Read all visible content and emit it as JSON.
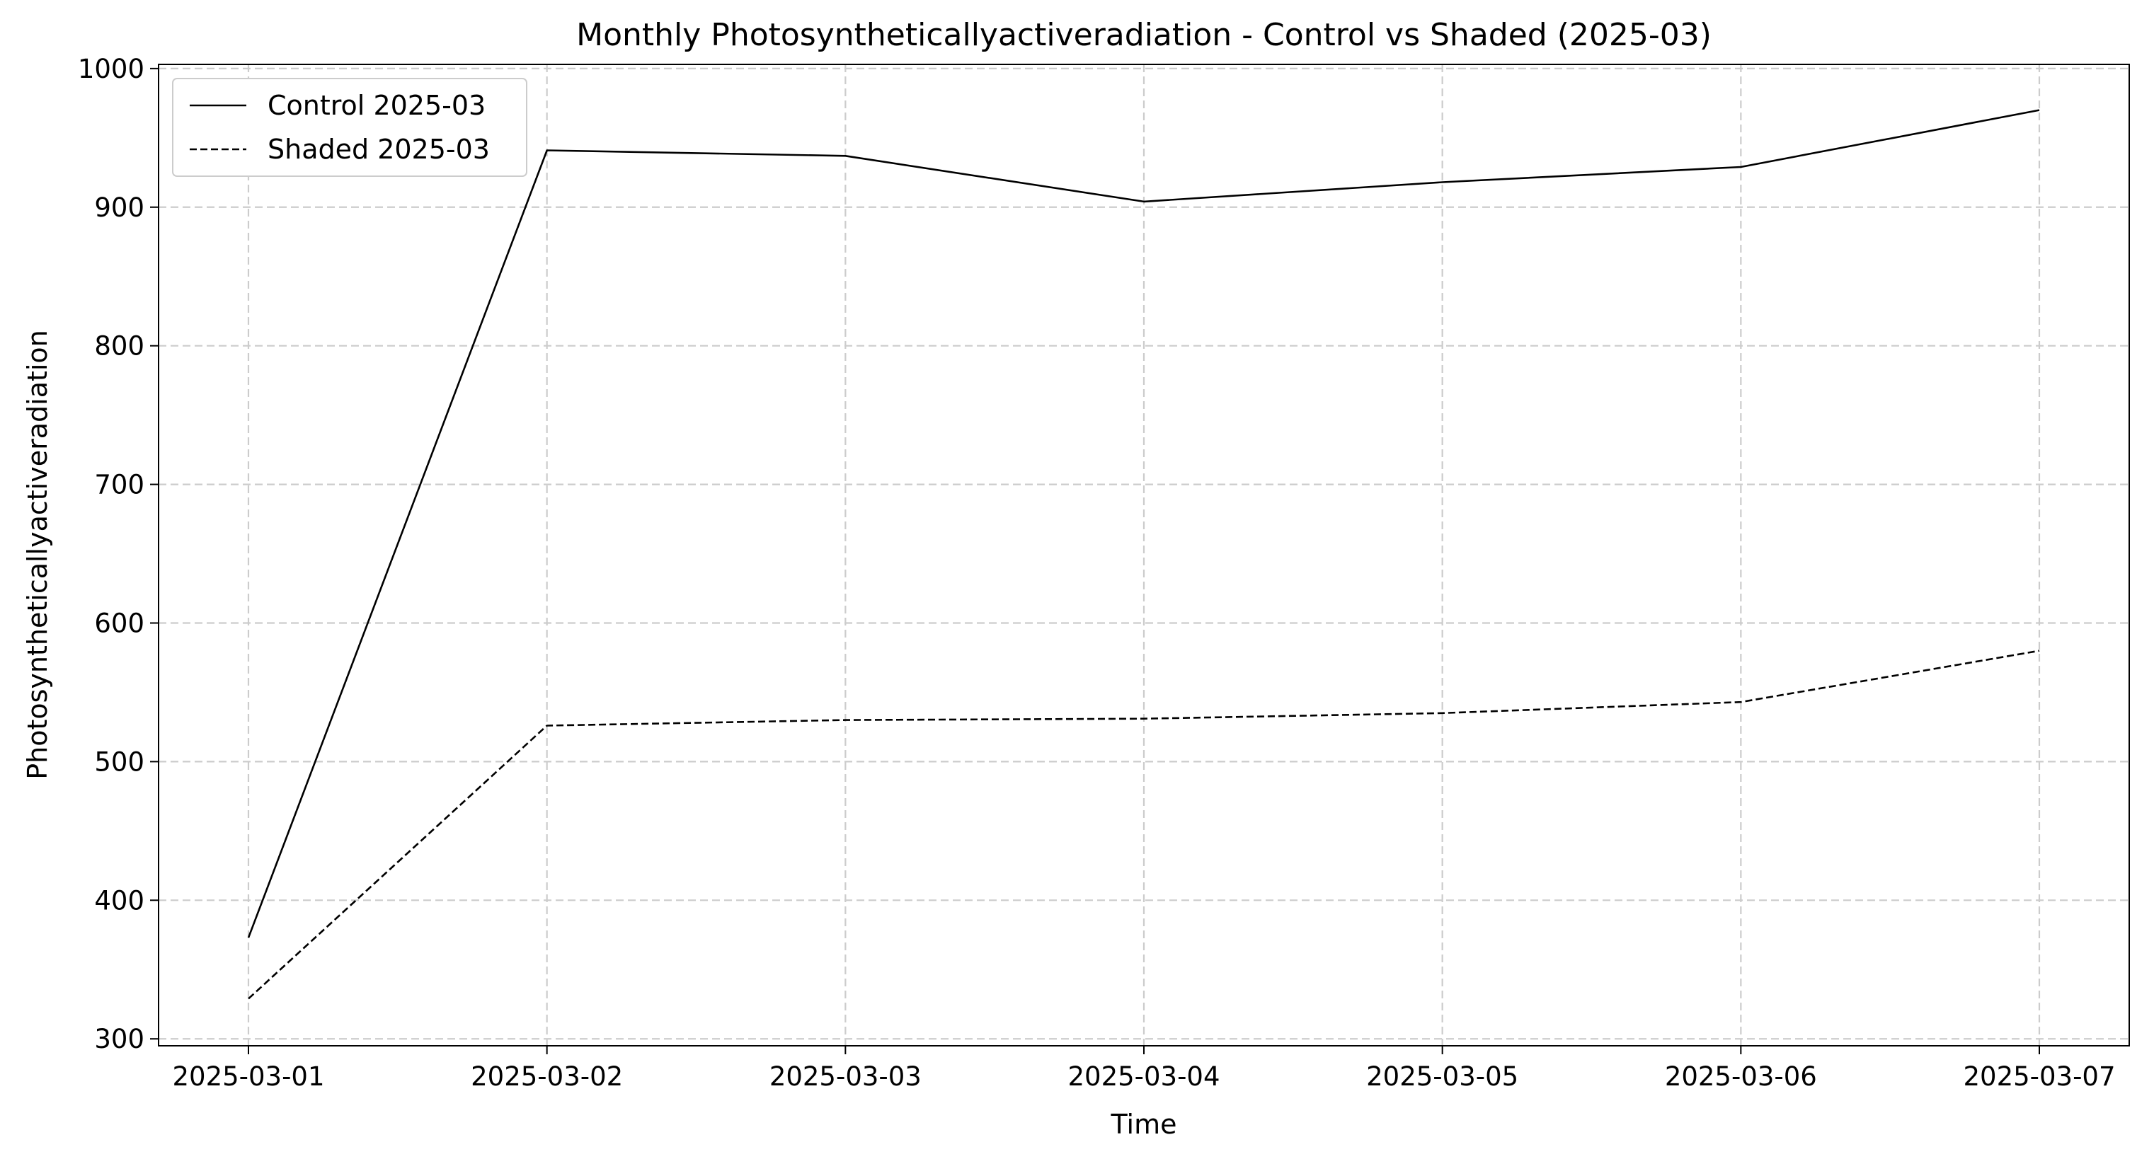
{
  "chart_data": {
    "type": "line",
    "title": "Monthly Photosyntheticallyactiveradiation - Control vs Shaded (2025-03)",
    "xlabel": "Time",
    "ylabel": "Photosyntheticallyactiveradiation",
    "x": [
      "2025-03-01",
      "2025-03-02",
      "2025-03-03",
      "2025-03-04",
      "2025-03-05",
      "2025-03-06",
      "2025-03-07"
    ],
    "ylim": [
      295,
      1003
    ],
    "yticks": [
      300,
      400,
      500,
      600,
      700,
      800,
      900,
      1000
    ],
    "grid": true,
    "legend_position": "top-left",
    "series": [
      {
        "name": "Control 2025-03",
        "style": "solid",
        "color": "#000000",
        "values": [
          373,
          941,
          937,
          904,
          918,
          929,
          970
        ]
      },
      {
        "name": "Shaded 2025-03",
        "style": "dashed",
        "color": "#000000",
        "values": [
          329,
          526,
          530,
          531,
          535,
          543,
          580
        ]
      }
    ]
  }
}
